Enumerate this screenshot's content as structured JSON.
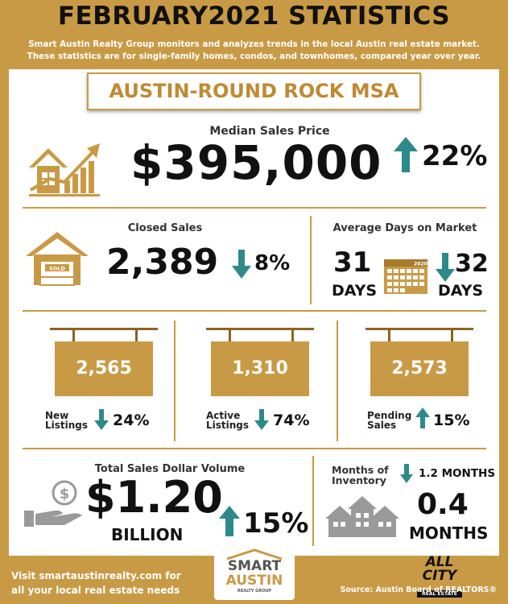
{
  "header": {
    "title": "FEBRUARY2021 STATISTICS",
    "subtitle_line1": "Smart Austin Realty Group monitors and analyzes trends in the local Austin real estate market.",
    "subtitle_line2": "These statistics are for single-family homes, condos, and townhomes, compared year over year."
  },
  "region": "AUSTIN-ROUND ROCK MSA",
  "median": {
    "label": "Median Sales Price",
    "value": "$395,000",
    "change": "22%",
    "direction": "up"
  },
  "closed": {
    "label": "Closed Sales",
    "value": "2,389",
    "change": "8%",
    "direction": "down",
    "sign_text": "SOLD"
  },
  "dom": {
    "label": "Average Days on Market",
    "current": "31",
    "current_unit": "DAYS",
    "previous": "32",
    "previous_unit": "DAYS",
    "direction": "down",
    "calendar_year": "2020"
  },
  "listings": [
    {
      "value": "2,565",
      "label_line1": "New",
      "label_line2": "Listings",
      "change": "24%",
      "direction": "down"
    },
    {
      "value": "1,310",
      "label_line1": "Active",
      "label_line2": "Listings",
      "change": "74%",
      "direction": "down"
    },
    {
      "value": "2,573",
      "label_line1": "Pending",
      "label_line2": "Sales",
      "change": "15%",
      "direction": "up"
    }
  ],
  "volume": {
    "label": "Total Sales Dollar Volume",
    "value": "$1.20",
    "unit": "BILLION",
    "change": "15%",
    "direction": "up"
  },
  "inventory": {
    "label_line1": "Months of",
    "label_line2": "Inventory",
    "previous": "1.2 MONTHS",
    "value": "0.4",
    "unit": "MONTHS",
    "direction": "down"
  },
  "footer": {
    "line1": "Visit smartaustinrealty.com for",
    "line2": "all your local real estate needs",
    "logo_line1": "SMART",
    "logo_line2": "AUSTIN",
    "logo_sub": "REALTY GROUP",
    "partner_line1": "ALL CITY",
    "partner_line2": "REAL ESTATE",
    "source": "Source: Austin Board of REALTORS®"
  },
  "colors": {
    "gold": "#c99a45",
    "arrow": "#2e8a8a",
    "house_gray": "#9a9a9a"
  }
}
